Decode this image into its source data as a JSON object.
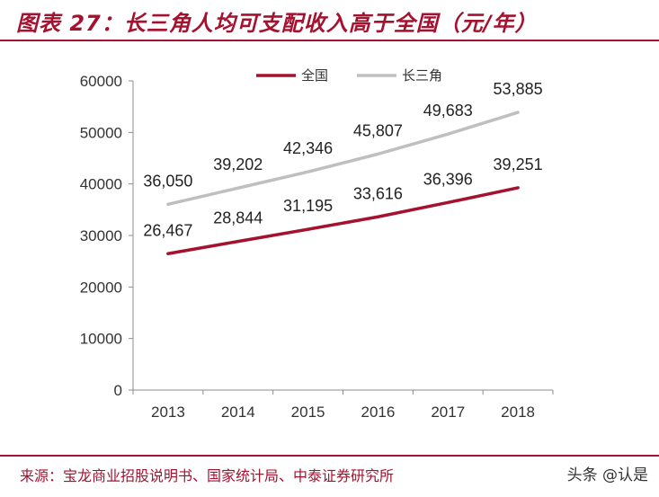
{
  "header": {
    "title": "图表 27：长三角人均可支配收入高于全国（元/年）"
  },
  "chart_data": {
    "type": "line",
    "title": "",
    "xlabel": "",
    "ylabel": "",
    "categories": [
      "2013",
      "2014",
      "2015",
      "2016",
      "2017",
      "2018"
    ],
    "ylim": [
      0,
      60000
    ],
    "yticks": [
      "0",
      "10000",
      "20000",
      "30000",
      "40000",
      "50000",
      "60000"
    ],
    "grid": false,
    "legend": "top-center",
    "series": [
      {
        "name": "全国",
        "color": "#a4122f",
        "values": [
          26467,
          28844,
          31195,
          33616,
          36396,
          39251
        ],
        "labels": [
          "26,467",
          "28,844",
          "31,195",
          "33,616",
          "36,396",
          "39,251"
        ]
      },
      {
        "name": "长三角",
        "color": "#bfbfbf",
        "values": [
          36050,
          39202,
          42346,
          45807,
          49683,
          53885
        ],
        "labels": [
          "36,050",
          "39,202",
          "42,346",
          "45,807",
          "49,683",
          "53,885"
        ]
      }
    ]
  },
  "footer": {
    "source": "来源：宝龙商业招股说明书、国家统计局、中泰证券研究所",
    "watermark": "头条 @认是"
  }
}
